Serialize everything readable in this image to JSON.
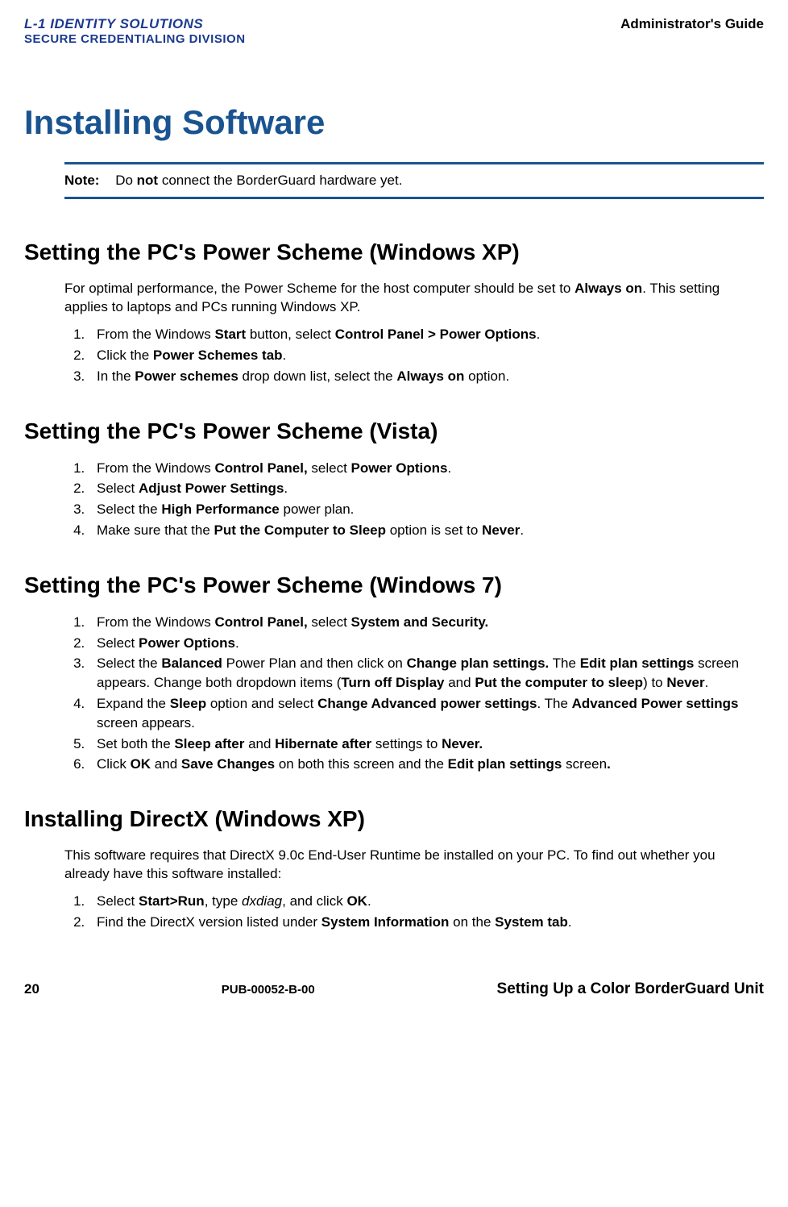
{
  "colors": {
    "brand_blue": "#1a3a8f",
    "heading_blue": "#1a5490",
    "text": "#000000",
    "background": "#ffffff"
  },
  "header": {
    "logo_line1": "L-1 IDENTITY SOLUTIONS",
    "logo_line2": "SECURE CREDENTIALING DIVISION",
    "guide": "Administrator's Guide"
  },
  "title": "Installing Software",
  "note": {
    "label": "Note:",
    "pre": "Do ",
    "bold": "not",
    "post": " connect the BorderGuard hardware yet."
  },
  "sections": {
    "xp": {
      "heading": "Setting the PC's Power Scheme (Windows XP)",
      "intro_pre": "For optimal performance, the Power Scheme for the host computer should be set to ",
      "intro_bold": "Always on",
      "intro_post": ". This setting applies to laptops and PCs running Windows XP.",
      "steps": [
        {
          "pre": "From the Windows ",
          "b1": "Start",
          "mid1": " button, select ",
          "b2": "Control Panel > Power Options",
          "post": "."
        },
        {
          "pre": "Click the ",
          "b1": "Power Schemes tab",
          "post": "."
        },
        {
          "pre": "In the ",
          "b1": "Power schemes",
          "mid1": " drop down list, select the ",
          "b2": "Always on",
          "post": " option."
        }
      ]
    },
    "vista": {
      "heading": "Setting the PC's Power Scheme (Vista)",
      "steps": [
        {
          "pre": "From the Windows ",
          "b1": "Control Panel,",
          "mid1": " select ",
          "b2": "Power Options",
          "post": "."
        },
        {
          "pre": "Select ",
          "b1": "Adjust Power Settings",
          "post": "."
        },
        {
          "pre": "Select the ",
          "b1": "High Performance",
          "post": " power plan."
        },
        {
          "pre": "Make sure that the ",
          "b1": "Put the Computer to Sleep",
          "mid1": " option is set to ",
          "b2": "Never",
          "post": "."
        }
      ]
    },
    "win7": {
      "heading": "Setting the PC's Power Scheme (Windows 7)",
      "steps_html": [
        "From the Windows <b>Control Panel,</b> select <b>System and Security.</b>",
        "Select <b>Power Options</b>.",
        "Select the <b>Balanced</b> Power Plan and then click on <b>Change plan settings.</b> The <b>Edit plan settings</b> screen appears. Change both dropdown items (<b>Turn off Display</b> and <b>Put the computer to sleep</b>) to <b>Never</b>.",
        "Expand the <b>Sleep</b> option and select <b>Change Advanced power settings</b>. The <b>Advanced Power settings</b> screen appears.",
        "Set both the <b>Sleep after</b> and <b>Hibernate after</b> settings to <b>Never.</b>",
        "Click <b>OK</b> and <b>Save Changes</b> on both this screen and the <b>Edit plan settings</b> screen<b>.</b>"
      ]
    },
    "directx": {
      "heading": "Installing DirectX (Windows XP)",
      "intro": "This software requires that DirectX 9.0c End-User Runtime be installed on your PC. To find out whether you already have this software installed:",
      "steps_html": [
        "Select <b>Start&gt;Run</b>, type <i>dxdiag</i>, and click <b>OK</b>.",
        " Find the DirectX version listed under <b>System Information</b> on the <b>System tab</b>."
      ]
    }
  },
  "footer": {
    "page": "20",
    "pub": "PUB-00052-B-00",
    "section": "Setting Up a Color BorderGuard Unit"
  }
}
